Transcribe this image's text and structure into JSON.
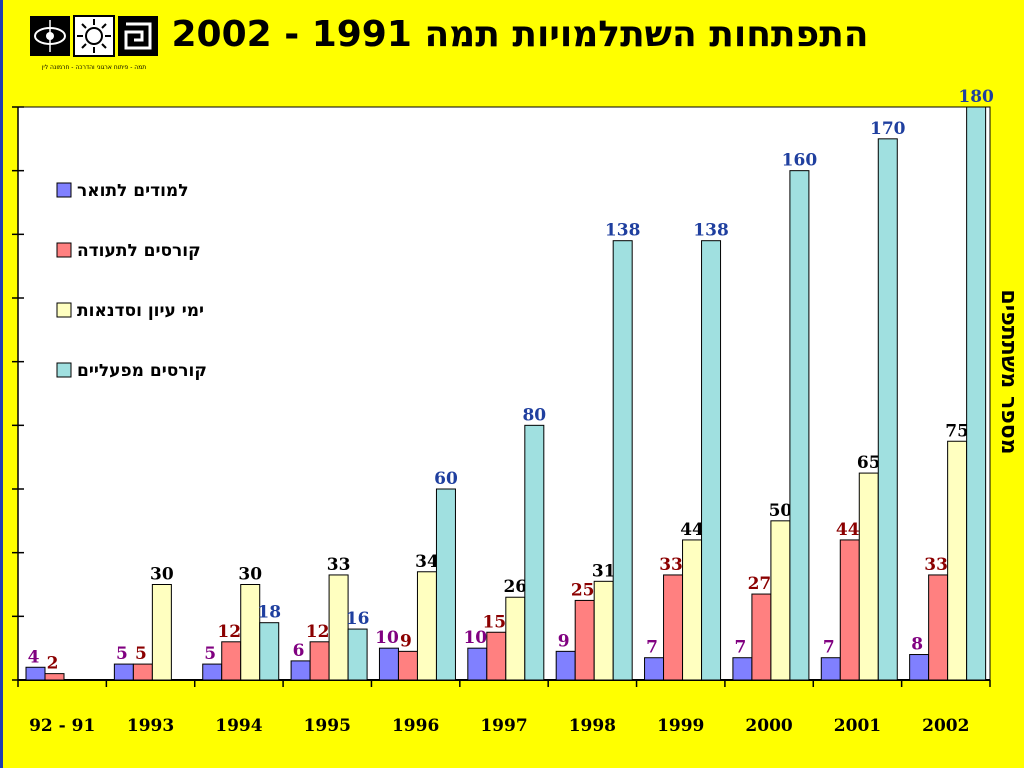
{
  "header": {
    "title": "התפתחות השתלמויות  תמה 1991 - 2002",
    "logo_caption": "תמה - פיתוח ארגוני והדרכה - חרמונה לין"
  },
  "colors": {
    "background": "#ffff00",
    "plot_background": "#ffffff",
    "series": [
      "#8080ff",
      "#ff8080",
      "#ffffc0",
      "#a0e0e0"
    ],
    "label_colors": [
      "#800080",
      "#8b0000",
      "#000000",
      "#1f3f9f"
    ]
  },
  "chart_data": {
    "type": "bar",
    "title": "התפתחות השתלמויות  תמה 1991 - 2002",
    "ylabel": "מספר משתתפים",
    "xlabel": "",
    "categories": [
      "92 - 91",
      "1993",
      "1994",
      "1995",
      "1996",
      "1997",
      "1998",
      "1999",
      "2000",
      "2001",
      "2002"
    ],
    "ylim": [
      0,
      180
    ],
    "legend_position": "top-left",
    "grid": false,
    "series": [
      {
        "name": "למודים לתואר",
        "values": [
          4,
          5,
          5,
          6,
          10,
          10,
          9,
          7,
          7,
          7,
          8
        ]
      },
      {
        "name": "קורסים לתעודה",
        "values": [
          2,
          5,
          12,
          12,
          9,
          15,
          25,
          33,
          27,
          44,
          33
        ]
      },
      {
        "name": "ימי עיון וסדנאות",
        "values": [
          null,
          30,
          30,
          33,
          34,
          26,
          31,
          44,
          50,
          65,
          75
        ]
      },
      {
        "name": "קורסים מפעליים",
        "values": [
          null,
          null,
          18,
          16,
          60,
          80,
          138,
          138,
          160,
          170,
          180
        ]
      }
    ]
  }
}
